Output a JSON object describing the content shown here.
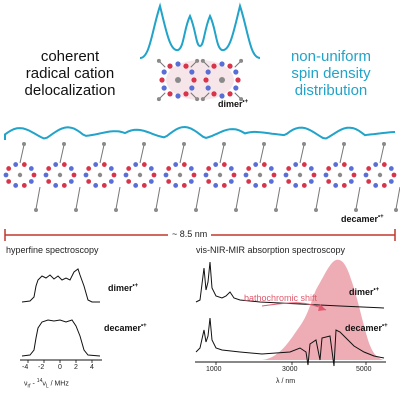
{
  "labels": {
    "left_caption": [
      "coherent",
      "radical cation",
      "delocalization"
    ],
    "right_caption": [
      "non-uniform",
      "spin density",
      "distribution"
    ],
    "dimer": "dimer",
    "decamer": "decamer",
    "charge": "•+",
    "scale_bar": "~ 8.5 nm"
  },
  "hyperfine": {
    "title": "hyperfine spectroscopy",
    "dimer_label": "dimer",
    "decamer_label": "decamer",
    "ticks": [
      "-4",
      "-2",
      "0",
      "2",
      "4"
    ],
    "xlabel_parts": [
      "ν",
      "rf",
      " - ",
      "14",
      "ν",
      "L",
      " / MHz"
    ]
  },
  "absorption": {
    "title": "vis-NIR-MIR absorption spectroscopy",
    "annotation": "bathochromic shift",
    "dimer_label": "dimer",
    "decamer_label": "decamer",
    "ticks": [
      "1000",
      "3000",
      "5000"
    ],
    "xlabel": "λ / nm"
  },
  "colors": {
    "spin_curve": "#22a3c9",
    "scale_bar": "#c0392b",
    "shaded": "#e8909c",
    "annotation": "#e05a6d",
    "atom_red": "#d8344a",
    "atom_blue": "#5a6fd6",
    "atom_gray": "#8a8a8a"
  }
}
